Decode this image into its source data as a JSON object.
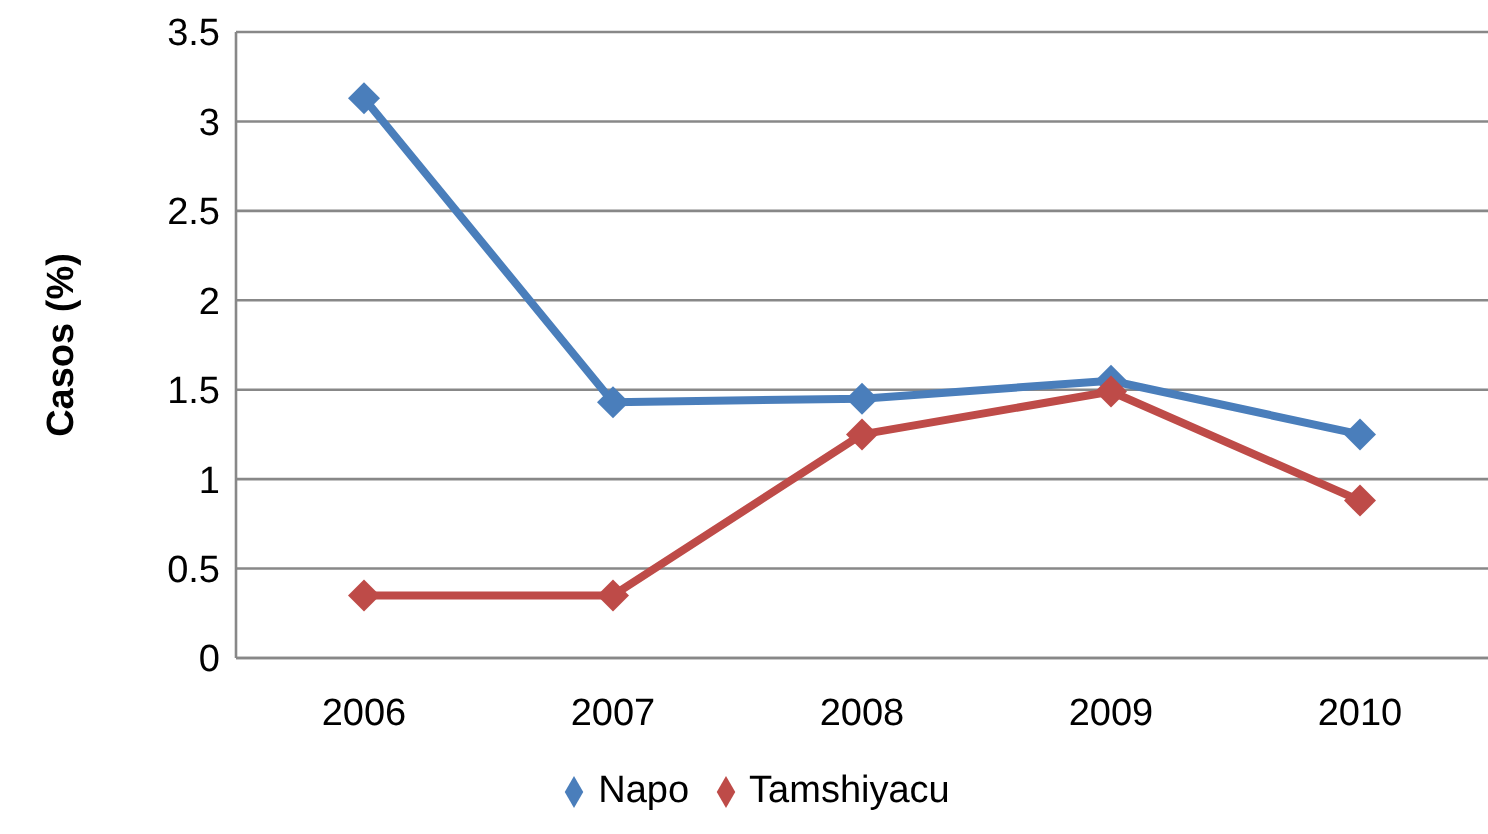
{
  "chart_data": {
    "type": "line",
    "ylabel": "Casos (%)",
    "categories": [
      "2006",
      "2007",
      "2008",
      "2009",
      "2010"
    ],
    "series": [
      {
        "name": "Napo",
        "color": "#4a7ebb",
        "values": [
          3.13,
          1.43,
          1.45,
          1.55,
          1.25
        ]
      },
      {
        "name": "Tamshiyacu",
        "color": "#be4b48",
        "values": [
          0.35,
          0.35,
          1.25,
          1.49,
          0.88
        ]
      }
    ],
    "ylim": [
      0,
      3.5
    ],
    "yticks": [
      0,
      0.5,
      1,
      1.5,
      2,
      2.5,
      3,
      3.5
    ],
    "grid": "y",
    "legend": "bottom",
    "marker": "diamond",
    "line_style": "solid"
  }
}
